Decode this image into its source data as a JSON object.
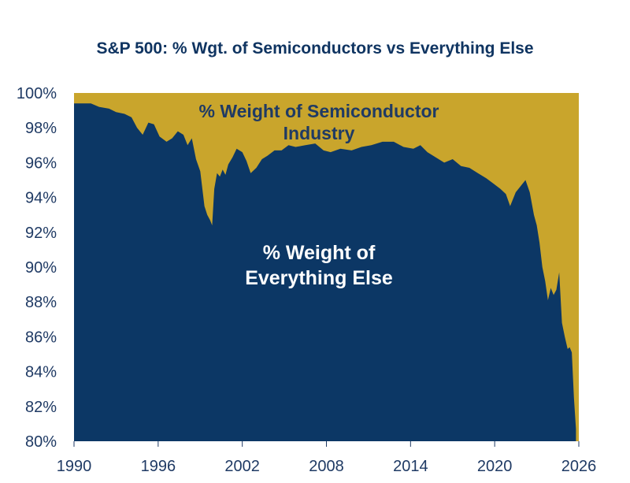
{
  "chart_data": {
    "type": "area",
    "title": "S&P 500: % Wgt. of Semiconductors vs Everything Else",
    "xlabel": "",
    "ylabel": "",
    "xlim": [
      1990,
      2026
    ],
    "ylim": [
      80,
      100
    ],
    "x_ticks": [
      "1990",
      "1996",
      "2002",
      "2008",
      "2014",
      "2020",
      "2026"
    ],
    "y_ticks": [
      "80%",
      "82%",
      "84%",
      "86%",
      "88%",
      "90%",
      "92%",
      "94%",
      "96%",
      "98%",
      "100%"
    ],
    "grid": false,
    "legend": "none",
    "annotations": {
      "upper": [
        "% Weight of Semiconductor",
        "Industry"
      ],
      "lower": [
        "% Weight of",
        "Everything Else"
      ]
    },
    "colors": {
      "upper": "#c9a52c",
      "lower": "#0c3765",
      "text": "#1f3a64"
    },
    "series": [
      {
        "name": "% Weight of Everything Else",
        "x": [
          1990.0,
          1990.6,
          1991.2,
          1991.8,
          1992.5,
          1993.0,
          1993.6,
          1994.1,
          1994.5,
          1994.9,
          1995.3,
          1995.7,
          1996.1,
          1996.6,
          1997.0,
          1997.4,
          1997.8,
          1998.1,
          1998.4,
          1998.7,
          1999.0,
          1999.3,
          1999.5,
          1999.7,
          1999.85,
          2000.0,
          2000.2,
          2000.4,
          2000.6,
          2000.8,
          2001.0,
          2001.3,
          2001.6,
          2002.0,
          2002.3,
          2002.6,
          2003.0,
          2003.4,
          2003.8,
          2004.3,
          2004.8,
          2005.3,
          2005.8,
          2006.5,
          2007.2,
          2007.8,
          2008.3,
          2009.0,
          2009.8,
          2010.5,
          2011.2,
          2012.0,
          2012.8,
          2013.5,
          2014.2,
          2014.7,
          2015.2,
          2015.8,
          2016.4,
          2017.0,
          2017.6,
          2018.2,
          2018.8,
          2019.4,
          2019.9,
          2020.4,
          2020.8,
          2021.1,
          2021.5,
          2021.9,
          2022.2,
          2022.5,
          2022.8,
          2023.0,
          2023.2,
          2023.4,
          2023.6,
          2023.8,
          2024.0,
          2024.2,
          2024.4,
          2024.6,
          2024.8,
          2025.0,
          2025.2,
          2025.35,
          2025.5,
          2025.65,
          2025.8
        ],
        "values": [
          99.4,
          99.4,
          99.4,
          99.2,
          99.1,
          98.9,
          98.8,
          98.6,
          98.0,
          97.6,
          98.3,
          98.2,
          97.5,
          97.2,
          97.4,
          97.8,
          97.6,
          97.0,
          97.4,
          96.2,
          95.5,
          93.5,
          93.0,
          92.7,
          92.4,
          94.5,
          95.4,
          95.2,
          95.6,
          95.3,
          95.9,
          96.3,
          96.8,
          96.6,
          96.1,
          95.4,
          95.7,
          96.2,
          96.4,
          96.7,
          96.7,
          97.0,
          96.9,
          97.0,
          97.1,
          96.7,
          96.6,
          96.8,
          96.7,
          96.9,
          97.0,
          97.2,
          97.2,
          96.9,
          96.8,
          97.0,
          96.6,
          96.3,
          96.0,
          96.2,
          95.8,
          95.7,
          95.4,
          95.1,
          94.8,
          94.5,
          94.2,
          93.5,
          94.3,
          94.7,
          95.0,
          94.3,
          93.0,
          92.4,
          91.4,
          90.0,
          89.2,
          88.1,
          88.8,
          88.4,
          88.7,
          89.7,
          86.8,
          86.0,
          85.3,
          85.4,
          85.1,
          82.5,
          80.7
        ]
      }
    ]
  }
}
